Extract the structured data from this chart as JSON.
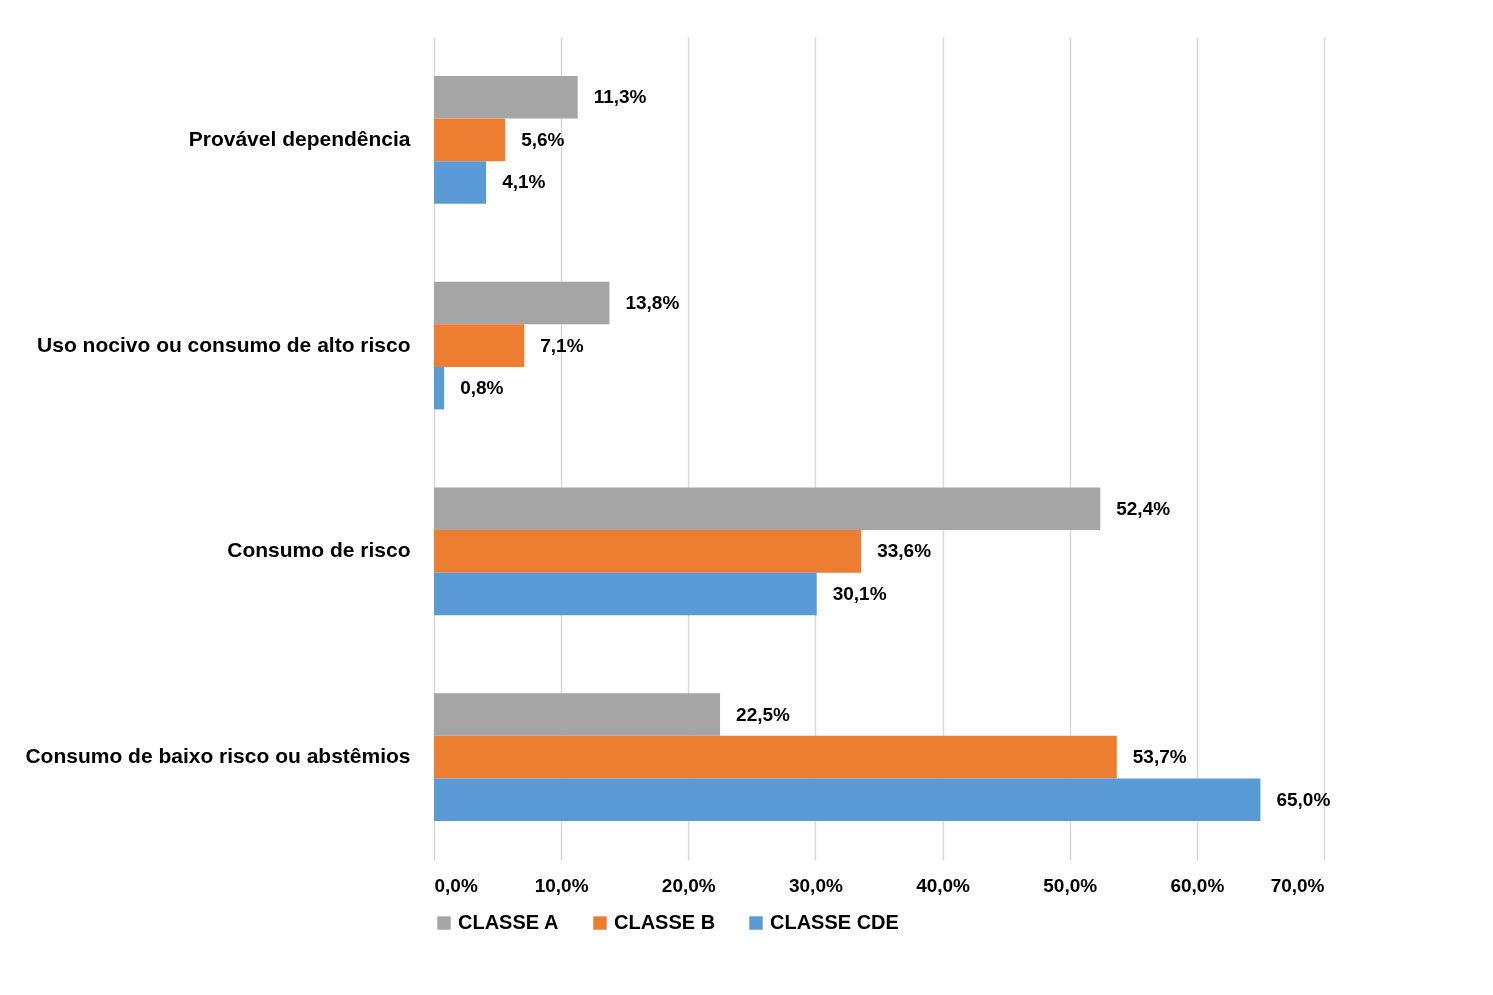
{
  "chart_data": {
    "type": "bar",
    "orientation": "horizontal",
    "categories": [
      "Provável dependência",
      "Uso nocivo ou consumo de alto risco",
      "Consumo de risco",
      "Consumo de baixo risco ou abstêmios"
    ],
    "series": [
      {
        "name": "CLASSE A",
        "color": "#a5a5a5",
        "values": [
          11.3,
          13.8,
          52.4,
          22.5
        ],
        "value_labels": [
          "11,3%",
          "13,8%",
          "52,4%",
          "22,5%"
        ]
      },
      {
        "name": "CLASSE B",
        "color": "#ed7d31",
        "values": [
          5.6,
          7.1,
          33.6,
          53.7
        ],
        "value_labels": [
          "5,6%",
          "7,1%",
          "33,6%",
          "53,7%"
        ]
      },
      {
        "name": "CLASSE CDE",
        "color": "#5b9bd5",
        "values": [
          4.1,
          0.8,
          30.1,
          65.0
        ],
        "value_labels": [
          "4,1%",
          "0,8%",
          "30,1%",
          "65,0%"
        ]
      }
    ],
    "xlim": [
      0,
      70
    ],
    "xticks": [
      {
        "value": 0,
        "label": "0,0%"
      },
      {
        "value": 10,
        "label": "10,0%"
      },
      {
        "value": 20,
        "label": "20,0%"
      },
      {
        "value": 30,
        "label": "30,0%"
      },
      {
        "value": 40,
        "label": "40,0%"
      },
      {
        "value": 50,
        "label": "50,0%"
      },
      {
        "value": 60,
        "label": "60,0%"
      },
      {
        "value": 70,
        "label": "70,0%"
      }
    ],
    "grid": "x",
    "legend": "bottom"
  }
}
